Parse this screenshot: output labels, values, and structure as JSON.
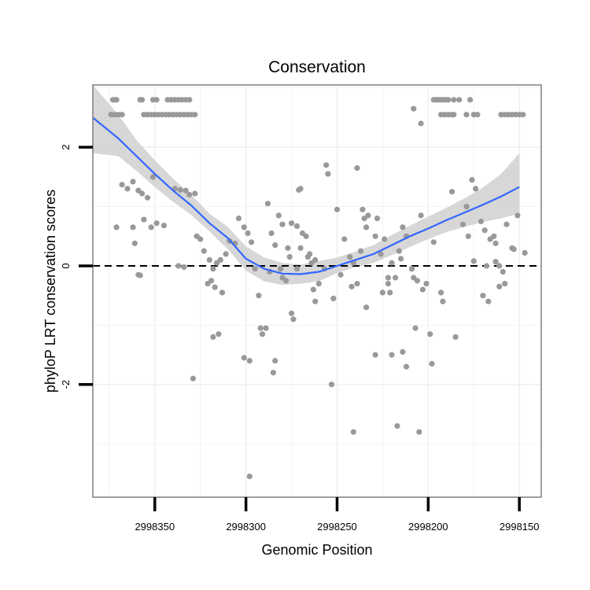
{
  "chart_data": {
    "type": "scatter",
    "title": "Conservation",
    "xlabel": "Genomic Position",
    "ylabel": "phyloP LRT conservation scores",
    "xlim": [
      2998384,
      2998138
    ],
    "ylim": [
      -3.9,
      3.05
    ],
    "x_reversed": true,
    "x_ticks": [
      2998350,
      2998300,
      2998250,
      2998200,
      2998150
    ],
    "x_tick_labels": [
      "2998350",
      "2998300",
      "2998250",
      "2998200",
      "2998150"
    ],
    "y_ticks": [
      2,
      0,
      -2
    ],
    "y_tick_labels": [
      "2",
      "0",
      "-2"
    ],
    "reference_line": {
      "y": 0,
      "style": "dashed"
    },
    "colors": {
      "points": "#999999",
      "smooth": "#3366ff",
      "band": "#d3d3d3",
      "grid": "#f0f0f0",
      "frame": "#7f7f7f"
    },
    "series": [
      {
        "name": "observations",
        "kind": "points",
        "points": [
          [
            2998373,
            2.8
          ],
          [
            2998372,
            2.8
          ],
          [
            2998371,
            2.8
          ],
          [
            2998358,
            2.8
          ],
          [
            2998357,
            2.8
          ],
          [
            2998351,
            2.8
          ],
          [
            2998349,
            2.8
          ],
          [
            2998343,
            2.8
          ],
          [
            2998341,
            2.8
          ],
          [
            2998339,
            2.8
          ],
          [
            2998337,
            2.8
          ],
          [
            2998335,
            2.8
          ],
          [
            2998333,
            2.8
          ],
          [
            2998331,
            2.8
          ],
          [
            2998374,
            2.55
          ],
          [
            2998372,
            2.55
          ],
          [
            2998370,
            2.55
          ],
          [
            2998368,
            2.55
          ],
          [
            2998356,
            2.55
          ],
          [
            2998354,
            2.55
          ],
          [
            2998352,
            2.55
          ],
          [
            2998350,
            2.55
          ],
          [
            2998348,
            2.55
          ],
          [
            2998346,
            2.55
          ],
          [
            2998344,
            2.55
          ],
          [
            2998342,
            2.55
          ],
          [
            2998340,
            2.55
          ],
          [
            2998338,
            2.55
          ],
          [
            2998336,
            2.55
          ],
          [
            2998334,
            2.55
          ],
          [
            2998332,
            2.55
          ],
          [
            2998330,
            2.55
          ],
          [
            2998328,
            2.55
          ],
          [
            2998368,
            1.37
          ],
          [
            2998365,
            1.3
          ],
          [
            2998362,
            1.42
          ],
          [
            2998359,
            1.27
          ],
          [
            2998357,
            1.22
          ],
          [
            2998354,
            1.15
          ],
          [
            2998351,
            1.5
          ],
          [
            2998339,
            1.3
          ],
          [
            2998336,
            1.28
          ],
          [
            2998333,
            1.27
          ],
          [
            2998331,
            1.2
          ],
          [
            2998328,
            1.22
          ],
          [
            2998327,
            0.5
          ],
          [
            2998371,
            0.65
          ],
          [
            2998362,
            0.65
          ],
          [
            2998356,
            0.78
          ],
          [
            2998352,
            0.65
          ],
          [
            2998349,
            0.72
          ],
          [
            2998345,
            0.68
          ],
          [
            2998361,
            0.38
          ],
          [
            2998359,
            -0.15
          ],
          [
            2998358,
            -0.16
          ],
          [
            2998337,
            0.0
          ],
          [
            2998334,
            -0.02
          ],
          [
            2998329,
            -1.9
          ],
          [
            2998325,
            0.45
          ],
          [
            2998323,
            0.25
          ],
          [
            2998320,
            0.1
          ],
          [
            2998318,
            -0.05
          ],
          [
            2998321,
            -0.3
          ],
          [
            2998319,
            -0.25
          ],
          [
            2998317,
            -0.36
          ],
          [
            2998318,
            -1.2
          ],
          [
            2998315,
            -1.15
          ],
          [
            2998313,
            -0.45
          ],
          [
            2998316,
            0.05
          ],
          [
            2998314,
            0.1
          ],
          [
            2998311,
            0.2
          ],
          [
            2998309,
            0.42
          ],
          [
            2998306,
            0.38
          ],
          [
            2998304,
            0.8
          ],
          [
            2998301,
            0.65
          ],
          [
            2998299,
            0.55
          ],
          [
            2998297,
            0.4
          ],
          [
            2998295,
            -0.05
          ],
          [
            2998301,
            -1.55
          ],
          [
            2998298,
            -1.6
          ],
          [
            2998298,
            -3.55
          ],
          [
            2998293,
            -0.5
          ],
          [
            2998292,
            -1.05
          ],
          [
            2998291,
            -1.15
          ],
          [
            2998289,
            -1.05
          ],
          [
            2998287,
            -0.1
          ],
          [
            2998286,
            0.55
          ],
          [
            2998284,
            0.35
          ],
          [
            2998282,
            0.85
          ],
          [
            2998281,
            -0.05
          ],
          [
            2998280,
            -0.2
          ],
          [
            2998278,
            -0.25
          ],
          [
            2998277,
            0.3
          ],
          [
            2998276,
            0.15
          ],
          [
            2998275,
            -0.8
          ],
          [
            2998274,
            -0.9
          ],
          [
            2998272,
            -0.05
          ],
          [
            2998270,
            0.3
          ],
          [
            2998269,
            0.55
          ],
          [
            2998267,
            0.5
          ],
          [
            2998266,
            0.15
          ],
          [
            2998264,
            0.05
          ],
          [
            2998262,
            0.1
          ],
          [
            2998260,
            -0.3
          ],
          [
            2998257,
            -0.05
          ],
          [
            2998256,
            1.7
          ],
          [
            2998255,
            1.55
          ],
          [
            2998284,
            -1.6
          ],
          [
            2998285,
            -1.8
          ],
          [
            2998288,
            1.05
          ],
          [
            2998280,
            0.7
          ],
          [
            2998275,
            0.72
          ],
          [
            2998272,
            0.67
          ],
          [
            2998271,
            1.28
          ],
          [
            2998270,
            1.3
          ],
          [
            2998265,
            0.2
          ],
          [
            2998263,
            -0.4
          ],
          [
            2998262,
            -0.6
          ],
          [
            2998252,
            -0.55
          ],
          [
            2998253,
            -2.0
          ],
          [
            2998250,
            0.95
          ],
          [
            2998248,
            -0.15
          ],
          [
            2998246,
            0.45
          ],
          [
            2998243,
            0.15
          ],
          [
            2998241,
            0.05
          ],
          [
            2998242,
            -0.35
          ],
          [
            2998239,
            -0.3
          ],
          [
            2998237,
            0.25
          ],
          [
            2998241,
            -2.8
          ],
          [
            2998236,
            0.95
          ],
          [
            2998235,
            0.8
          ],
          [
            2998234,
            0.65
          ],
          [
            2998233,
            0.85
          ],
          [
            2998229,
            0.5
          ],
          [
            2998228,
            0.8
          ],
          [
            2998226,
            0.2
          ],
          [
            2998224,
            0.45
          ],
          [
            2998222,
            -0.3
          ],
          [
            2998221,
            -0.45
          ],
          [
            2998220,
            0.05
          ],
          [
            2998218,
            -0.2
          ],
          [
            2998216,
            0.25
          ],
          [
            2998215,
            0.12
          ],
          [
            2998214,
            0.65
          ],
          [
            2998212,
            0.5
          ],
          [
            2998209,
            -0.05
          ],
          [
            2998239,
            1.65
          ],
          [
            2998234,
            -0.7
          ],
          [
            2998229,
            -1.5
          ],
          [
            2998225,
            -0.45
          ],
          [
            2998222,
            -0.2
          ],
          [
            2998220,
            -1.5
          ],
          [
            2998217,
            -2.7
          ],
          [
            2998214,
            -1.45
          ],
          [
            2998212,
            -1.7
          ],
          [
            2998209,
            -0.05
          ],
          [
            2998207,
            -1.05
          ],
          [
            2998205,
            -2.8
          ],
          [
            2998203,
            -0.4
          ],
          [
            2998208,
            -0.2
          ],
          [
            2998206,
            -0.25
          ],
          [
            2998204,
            0.85
          ],
          [
            2998201,
            -0.3
          ],
          [
            2998199,
            -1.15
          ],
          [
            2998198,
            -1.65
          ],
          [
            2998197,
            0.4
          ],
          [
            2998193,
            -0.45
          ],
          [
            2998192,
            -0.6
          ],
          [
            2998187,
            1.25
          ],
          [
            2998185,
            -1.2
          ],
          [
            2998181,
            0.7
          ],
          [
            2998179,
            1.0
          ],
          [
            2998178,
            0.5
          ],
          [
            2998197,
            2.8
          ],
          [
            2998196,
            2.8
          ],
          [
            2998195,
            2.8
          ],
          [
            2998194,
            2.8
          ],
          [
            2998193,
            2.8
          ],
          [
            2998192,
            2.8
          ],
          [
            2998191,
            2.8
          ],
          [
            2998190,
            2.8
          ],
          [
            2998189,
            2.8
          ],
          [
            2998186,
            2.8
          ],
          [
            2998183,
            2.8
          ],
          [
            2998177,
            2.8
          ],
          [
            2998193,
            2.55
          ],
          [
            2998191,
            2.55
          ],
          [
            2998189,
            2.55
          ],
          [
            2998187,
            2.55
          ],
          [
            2998186,
            2.55
          ],
          [
            2998179,
            2.55
          ],
          [
            2998175,
            2.55
          ],
          [
            2998173,
            2.55
          ],
          [
            2998160,
            2.55
          ],
          [
            2998158,
            2.55
          ],
          [
            2998156,
            2.55
          ],
          [
            2998154,
            2.55
          ],
          [
            2998152,
            2.55
          ],
          [
            2998150,
            2.55
          ],
          [
            2998148,
            2.55
          ],
          [
            2998208,
            2.65
          ],
          [
            2998204,
            2.4
          ],
          [
            2998176,
            1.45
          ],
          [
            2998174,
            1.3
          ],
          [
            2998171,
            0.75
          ],
          [
            2998169,
            0.6
          ],
          [
            2998168,
            0.0
          ],
          [
            2998166,
            0.45
          ],
          [
            2998164,
            0.5
          ],
          [
            2998163,
            0.38
          ],
          [
            2998161,
            0.0
          ],
          [
            2998159,
            -0.1
          ],
          [
            2998157,
            0.7
          ],
          [
            2998154,
            0.3
          ],
          [
            2998170,
            -0.5
          ],
          [
            2998167,
            -0.6
          ],
          [
            2998161,
            -0.35
          ],
          [
            2998158,
            -0.3
          ],
          [
            2998153,
            0.28
          ],
          [
            2998151,
            0.85
          ],
          [
            2998147,
            0.22
          ],
          [
            2998175,
            0.08
          ],
          [
            2998163,
            0.07
          ]
        ]
      },
      {
        "name": "loess fit",
        "kind": "line",
        "x": [
          2998384,
          2998370,
          2998360,
          2998350,
          2998340,
          2998330,
          2998320,
          2998310,
          2998300,
          2998290,
          2998280,
          2998270,
          2998260,
          2998250,
          2998240,
          2998230,
          2998220,
          2998210,
          2998200,
          2998190,
          2998180,
          2998170,
          2998160,
          2998150
        ],
        "y": [
          2.5,
          2.15,
          1.85,
          1.55,
          1.27,
          1.02,
          0.72,
          0.47,
          0.12,
          -0.05,
          -0.13,
          -0.14,
          -0.1,
          0.0,
          0.1,
          0.2,
          0.35,
          0.5,
          0.63,
          0.77,
          0.9,
          1.03,
          1.17,
          1.33
        ],
        "ci_lower": [
          1.9,
          1.85,
          1.6,
          1.33,
          1.08,
          0.86,
          0.58,
          0.28,
          -0.08,
          -0.26,
          -0.32,
          -0.3,
          -0.26,
          -0.12,
          -0.02,
          0.05,
          0.18,
          0.32,
          0.45,
          0.57,
          0.66,
          0.74,
          0.8,
          0.88
        ],
        "ci_upper": [
          3.05,
          2.55,
          2.12,
          1.78,
          1.47,
          1.2,
          0.88,
          0.66,
          0.33,
          0.14,
          0.05,
          0.02,
          0.08,
          0.14,
          0.24,
          0.35,
          0.52,
          0.68,
          0.83,
          0.98,
          1.14,
          1.32,
          1.55,
          1.9
        ]
      }
    ]
  }
}
